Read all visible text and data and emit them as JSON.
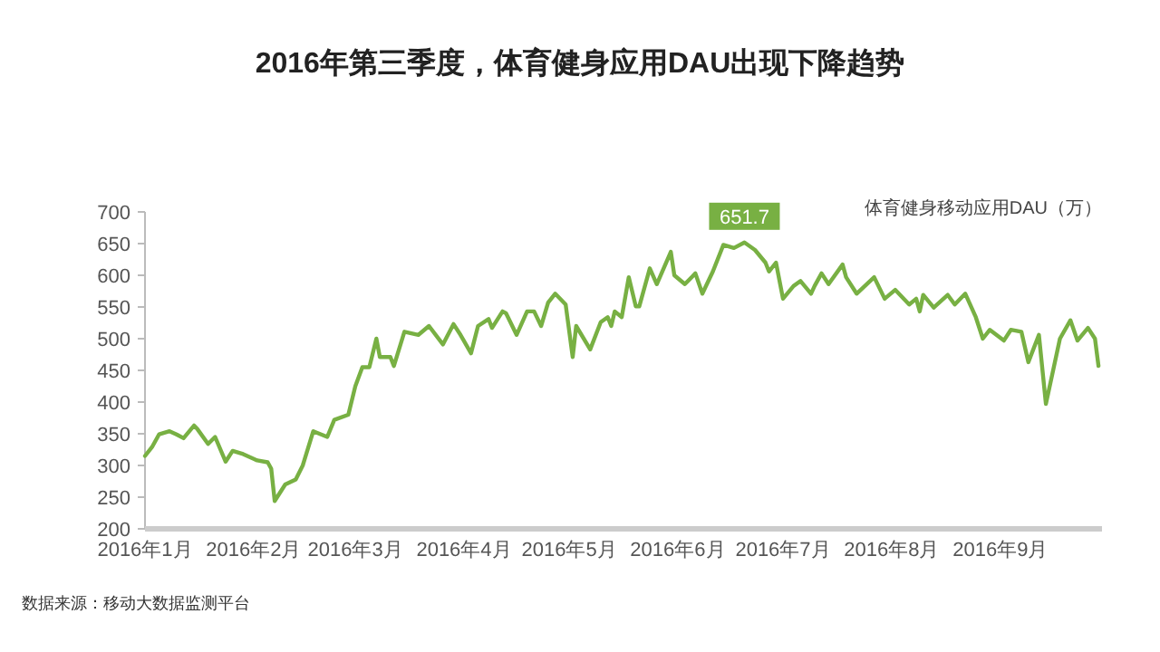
{
  "chart_data": {
    "type": "line",
    "title": "2016年第三季度，体育健身应用DAU出现下降趋势",
    "ylabel": "体育健身移动应用DAU（万）",
    "x": [
      "2016-01-01",
      "2016-01-03",
      "2016-01-05",
      "2016-01-08",
      "2016-01-10",
      "2016-01-12",
      "2016-01-15",
      "2016-01-16",
      "2016-01-19",
      "2016-01-21",
      "2016-01-24",
      "2016-01-26",
      "2016-01-29",
      "2016-02-02",
      "2016-02-05",
      "2016-02-06",
      "2016-02-07",
      "2016-02-10",
      "2016-02-13",
      "2016-02-15",
      "2016-02-18",
      "2016-02-22",
      "2016-02-24",
      "2016-02-28",
      "2016-03-01",
      "2016-03-03",
      "2016-03-05",
      "2016-03-07",
      "2016-03-08",
      "2016-03-11",
      "2016-03-12",
      "2016-03-15",
      "2016-03-19",
      "2016-03-22",
      "2016-03-26",
      "2016-03-29",
      "2016-03-31",
      "2016-04-03",
      "2016-04-05",
      "2016-04-08",
      "2016-04-09",
      "2016-04-12",
      "2016-04-13",
      "2016-04-16",
      "2016-04-19",
      "2016-04-21",
      "2016-04-23",
      "2016-04-25",
      "2016-04-27",
      "2016-04-30",
      "2016-05-02",
      "2016-05-03",
      "2016-05-07",
      "2016-05-10",
      "2016-05-12",
      "2016-05-13",
      "2016-05-14",
      "2016-05-16",
      "2016-05-18",
      "2016-05-20",
      "2016-05-21",
      "2016-05-24",
      "2016-05-26",
      "2016-05-30",
      "2016-05-31",
      "2016-06-03",
      "2016-06-06",
      "2016-06-08",
      "2016-06-11",
      "2016-06-14",
      "2016-06-17",
      "2016-06-20",
      "2016-06-23",
      "2016-06-26",
      "2016-06-27",
      "2016-06-29",
      "2016-07-01",
      "2016-07-04",
      "2016-07-06",
      "2016-07-09",
      "2016-07-10",
      "2016-07-12",
      "2016-07-14",
      "2016-07-18",
      "2016-07-19",
      "2016-07-22",
      "2016-07-27",
      "2016-07-30",
      "2016-08-02",
      "2016-08-06",
      "2016-08-08",
      "2016-08-09",
      "2016-08-10",
      "2016-08-13",
      "2016-08-17",
      "2016-08-19",
      "2016-08-22",
      "2016-08-25",
      "2016-08-27",
      "2016-08-29",
      "2016-09-02",
      "2016-09-04",
      "2016-09-07",
      "2016-09-09",
      "2016-09-12",
      "2016-09-14",
      "2016-09-18",
      "2016-09-21",
      "2016-09-23",
      "2016-09-26",
      "2016-09-28",
      "2016-09-29"
    ],
    "series": [
      {
        "color": "#78b043",
        "values": [
          315,
          329,
          349,
          354,
          349,
          343,
          363,
          357,
          334,
          345,
          306,
          323,
          318,
          308,
          305,
          295,
          244,
          270,
          278,
          300,
          354,
          345,
          372,
          380,
          425,
          455,
          455,
          500,
          471,
          471,
          457,
          511,
          506,
          520,
          491,
          523,
          506,
          477,
          520,
          531,
          517,
          543,
          540,
          506,
          543,
          543,
          520,
          557,
          571,
          554,
          471,
          520,
          483,
          526,
          534,
          520,
          543,
          534,
          597,
          551,
          551,
          611,
          586,
          637,
          600,
          586,
          603,
          571,
          606,
          648,
          643,
          651.7,
          640,
          620,
          606,
          620,
          563,
          583,
          591,
          571,
          583,
          603,
          586,
          617,
          597,
          571,
          597,
          563,
          577,
          554,
          563,
          543,
          569,
          549,
          569,
          554,
          571,
          534,
          500,
          514,
          497,
          514,
          511,
          463,
          506,
          397,
          500,
          529,
          497,
          517,
          500,
          457
        ]
      }
    ],
    "annotations": [
      {
        "text": "651.7",
        "x": "2016-06-20",
        "y": 651.7
      },
      "数据来源：移动大数据监测平台"
    ],
    "xlim": [
      "2016-01-01",
      "2016-09-30"
    ],
    "xticks": [
      {
        "value": "2016-01-01",
        "label": "2016年1月"
      },
      {
        "value": "2016-02-01",
        "label": "2016年2月"
      },
      {
        "value": "2016-03-01",
        "label": "2016年3月"
      },
      {
        "value": "2016-04-01",
        "label": "2016年4月"
      },
      {
        "value": "2016-05-01",
        "label": "2016年5月"
      },
      {
        "value": "2016-06-01",
        "label": "2016年6月"
      },
      {
        "value": "2016-07-01",
        "label": "2016年7月"
      },
      {
        "value": "2016-08-01",
        "label": "2016年8月"
      },
      {
        "value": "2016-09-01",
        "label": "2016年9月"
      }
    ],
    "ylim": [
      200,
      700
    ],
    "yticks": [
      200,
      250,
      300,
      350,
      400,
      450,
      500,
      550,
      600,
      650,
      700
    ],
    "grid": false,
    "marker": "none",
    "line_style": "solid"
  }
}
